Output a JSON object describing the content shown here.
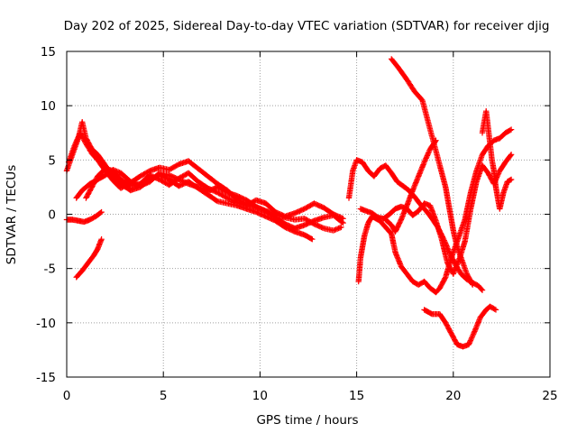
{
  "chart_data": {
    "type": "scatter",
    "title": "Day 202 of 2025, Sidereal Day-to-day VTEC variation (SDTVAR) for receiver djig",
    "xlabel": "GPS time / hours",
    "ylabel": "SDTVAR / TECUs",
    "xlim": [
      0,
      25
    ],
    "ylim": [
      -15,
      15
    ],
    "xticks": [
      0,
      5,
      10,
      15,
      20,
      25
    ],
    "yticks": [
      -15,
      -10,
      -5,
      0,
      5,
      10,
      15
    ],
    "grid": true,
    "marker": "+",
    "color": "#ff0000",
    "series": [
      {
        "points": [
          [
            0,
            4.0
          ],
          [
            0.3,
            5.5
          ],
          [
            0.6,
            7.0
          ],
          [
            0.8,
            8.5
          ],
          [
            1.0,
            7.0
          ],
          [
            1.3,
            6.0
          ],
          [
            1.6,
            5.5
          ],
          [
            2.0,
            4.5
          ],
          [
            2.4,
            3.5
          ],
          [
            2.8,
            2.8
          ],
          [
            3.3,
            2.2
          ],
          [
            3.8,
            2.5
          ],
          [
            4.3,
            3.2
          ],
          [
            4.8,
            3.6
          ],
          [
            5.3,
            3.2
          ],
          [
            5.8,
            2.6
          ],
          [
            6.3,
            3.0
          ],
          [
            6.8,
            2.4
          ],
          [
            7.3,
            1.8
          ],
          [
            7.8,
            1.2
          ],
          [
            8.3,
            1.0
          ],
          [
            8.8,
            0.8
          ],
          [
            9.3,
            0.5
          ],
          [
            9.8,
            0.2
          ],
          [
            10.3,
            -0.2
          ],
          [
            10.8,
            -0.6
          ],
          [
            11.3,
            -1.2
          ],
          [
            11.8,
            -1.6
          ],
          [
            12.3,
            -1.9
          ],
          [
            12.7,
            -2.3
          ]
        ]
      },
      {
        "points": [
          [
            0.1,
            4.8
          ],
          [
            0.4,
            6.3
          ],
          [
            0.7,
            7.5
          ],
          [
            1.0,
            6.5
          ],
          [
            1.3,
            5.6
          ],
          [
            1.6,
            5.0
          ],
          [
            2.0,
            4.0
          ],
          [
            2.4,
            3.1
          ],
          [
            2.8,
            2.4
          ],
          [
            3.3,
            2.9
          ],
          [
            3.8,
            3.5
          ],
          [
            4.3,
            4.0
          ],
          [
            4.8,
            4.3
          ],
          [
            5.3,
            4.1
          ],
          [
            5.8,
            4.6
          ],
          [
            6.3,
            4.9
          ],
          [
            6.8,
            4.2
          ],
          [
            7.3,
            3.5
          ],
          [
            7.8,
            2.8
          ],
          [
            8.3,
            2.2
          ],
          [
            8.8,
            1.4
          ],
          [
            9.3,
            0.9
          ],
          [
            9.8,
            0.6
          ],
          [
            10.3,
            0.3
          ],
          [
            10.8,
            0.0
          ],
          [
            11.3,
            -0.3
          ],
          [
            11.8,
            -0.5
          ],
          [
            12.3,
            -0.4
          ],
          [
            12.8,
            -0.9
          ],
          [
            13.3,
            -1.3
          ],
          [
            13.8,
            -1.5
          ],
          [
            14.2,
            -1.2
          ]
        ]
      },
      {
        "points": [
          [
            1.0,
            1.5
          ],
          [
            1.3,
            2.5
          ],
          [
            1.6,
            3.5
          ],
          [
            2.0,
            4.2
          ],
          [
            2.4,
            4.0
          ],
          [
            2.8,
            3.2
          ],
          [
            3.3,
            2.6
          ],
          [
            3.8,
            2.8
          ],
          [
            4.3,
            3.6
          ],
          [
            4.8,
            3.2
          ],
          [
            5.3,
            2.7
          ],
          [
            5.8,
            3.3
          ],
          [
            6.3,
            3.8
          ],
          [
            6.8,
            3.0
          ],
          [
            7.3,
            2.4
          ],
          [
            7.8,
            2.0
          ],
          [
            8.3,
            1.5
          ],
          [
            8.8,
            1.1
          ],
          [
            9.3,
            0.8
          ],
          [
            9.8,
            1.3
          ],
          [
            10.3,
            1.0
          ],
          [
            10.8,
            0.2
          ],
          [
            11.3,
            -0.2
          ],
          [
            11.8,
            0.1
          ],
          [
            12.3,
            0.5
          ],
          [
            12.8,
            1.0
          ],
          [
            13.3,
            0.6
          ],
          [
            13.8,
            0.0
          ],
          [
            14.3,
            -0.4
          ]
        ]
      },
      {
        "points": [
          [
            0.5,
            1.5
          ],
          [
            0.8,
            2.2
          ],
          [
            1.2,
            2.8
          ],
          [
            1.6,
            3.2
          ],
          [
            2.0,
            3.6
          ],
          [
            2.4,
            4.1
          ],
          [
            2.8,
            3.8
          ],
          [
            3.3,
            3.0
          ],
          [
            3.8,
            2.6
          ],
          [
            4.3,
            3.0
          ],
          [
            4.8,
            3.8
          ],
          [
            5.3,
            3.6
          ],
          [
            5.8,
            3.2
          ],
          [
            6.3,
            2.8
          ],
          [
            6.8,
            2.5
          ],
          [
            7.3,
            2.1
          ],
          [
            7.8,
            2.5
          ],
          [
            8.3,
            2.0
          ],
          [
            8.8,
            1.7
          ],
          [
            9.3,
            1.3
          ],
          [
            9.8,
            0.7
          ],
          [
            10.3,
            0.3
          ],
          [
            10.8,
            -0.3
          ],
          [
            11.3,
            -0.9
          ],
          [
            11.8,
            -1.3
          ],
          [
            12.3,
            -1.0
          ],
          [
            12.8,
            -0.6
          ],
          [
            13.3,
            -0.3
          ],
          [
            13.8,
            -0.1
          ],
          [
            14.3,
            -0.8
          ]
        ]
      },
      {
        "points": [
          [
            0,
            -0.5
          ],
          [
            0.3,
            -0.5
          ],
          [
            0.6,
            -0.6
          ],
          [
            0.9,
            -0.7
          ],
          [
            1.2,
            -0.5
          ],
          [
            1.5,
            -0.2
          ],
          [
            1.8,
            0.2
          ]
        ]
      },
      {
        "points": [
          [
            0.5,
            -5.8
          ],
          [
            0.8,
            -5.2
          ],
          [
            1.1,
            -4.5
          ],
          [
            1.4,
            -3.8
          ],
          [
            1.6,
            -3.2
          ],
          [
            1.8,
            -2.3
          ]
        ]
      },
      {
        "points": [
          [
            14.6,
            1.5
          ],
          [
            14.8,
            4.0
          ],
          [
            15.0,
            5.0
          ],
          [
            15.3,
            4.8
          ],
          [
            15.6,
            4.0
          ],
          [
            15.9,
            3.5
          ],
          [
            16.2,
            4.2
          ],
          [
            16.5,
            4.5
          ],
          [
            16.8,
            3.8
          ],
          [
            17.1,
            3.0
          ],
          [
            17.4,
            2.6
          ],
          [
            17.7,
            2.2
          ],
          [
            18.0,
            1.6
          ],
          [
            18.3,
            0.9
          ],
          [
            18.6,
            0.3
          ],
          [
            18.9,
            -0.4
          ],
          [
            19.2,
            -1.2
          ],
          [
            19.5,
            -2.3
          ],
          [
            19.8,
            -3.5
          ],
          [
            20.1,
            -4.6
          ],
          [
            20.4,
            -5.5
          ],
          [
            20.7,
            -6.0
          ],
          [
            21.0,
            -6.3
          ],
          [
            21.3,
            -6.6
          ],
          [
            21.5,
            -7.0
          ]
        ]
      },
      {
        "points": [
          [
            15.1,
            -6.2
          ],
          [
            15.2,
            -4.0
          ],
          [
            15.4,
            -2.0
          ],
          [
            15.6,
            -0.8
          ],
          [
            15.8,
            -0.2
          ],
          [
            16.0,
            -0.4
          ],
          [
            16.2,
            -0.6
          ],
          [
            16.5,
            -1.2
          ],
          [
            16.8,
            -1.8
          ],
          [
            17.0,
            -3.5
          ],
          [
            17.3,
            -4.8
          ],
          [
            17.6,
            -5.5
          ],
          [
            17.9,
            -6.2
          ],
          [
            18.2,
            -6.5
          ],
          [
            18.5,
            -6.2
          ],
          [
            18.8,
            -6.8
          ],
          [
            19.1,
            -7.2
          ],
          [
            19.3,
            -6.8
          ],
          [
            19.6,
            -5.8
          ],
          [
            19.9,
            -4.0
          ],
          [
            20.2,
            -2.5
          ],
          [
            20.6,
            -0.5
          ],
          [
            20.9,
            2.0
          ],
          [
            21.2,
            4.0
          ],
          [
            21.5,
            5.5
          ],
          [
            21.8,
            6.3
          ],
          [
            22.1,
            6.8
          ],
          [
            22.4,
            7.0
          ],
          [
            22.7,
            7.5
          ],
          [
            23.0,
            7.8
          ]
        ]
      },
      {
        "points": [
          [
            15.2,
            0.5
          ],
          [
            15.5,
            0.3
          ],
          [
            15.8,
            0.1
          ],
          [
            16.1,
            -0.3
          ],
          [
            16.4,
            -0.4
          ],
          [
            16.7,
            0.0
          ],
          [
            17.0,
            0.5
          ],
          [
            17.3,
            0.7
          ],
          [
            17.6,
            0.5
          ],
          [
            17.9,
            -0.1
          ],
          [
            18.2,
            0.3
          ],
          [
            18.5,
            1.0
          ],
          [
            18.8,
            0.8
          ],
          [
            19.1,
            -0.6
          ],
          [
            19.4,
            -2.3
          ],
          [
            19.7,
            -4.5
          ],
          [
            20.0,
            -5.5
          ],
          [
            20.3,
            -4.2
          ],
          [
            20.6,
            -2.5
          ],
          [
            20.9,
            0.5
          ],
          [
            21.2,
            3.0
          ],
          [
            21.5,
            4.5
          ],
          [
            21.8,
            3.8
          ],
          [
            22.1,
            2.8
          ],
          [
            22.4,
            4.0
          ],
          [
            22.7,
            4.8
          ],
          [
            23.0,
            5.5
          ]
        ]
      },
      {
        "points": [
          [
            16.5,
            -0.5
          ],
          [
            16.8,
            -1.0
          ],
          [
            17.0,
            -1.6
          ],
          [
            17.3,
            -0.5
          ],
          [
            17.6,
            0.8
          ],
          [
            17.9,
            2.2
          ],
          [
            18.2,
            3.5
          ],
          [
            18.5,
            4.8
          ],
          [
            18.8,
            6.0
          ],
          [
            19.1,
            6.8
          ]
        ]
      },
      {
        "points": [
          [
            16.8,
            14.3
          ],
          [
            17.2,
            13.4
          ],
          [
            17.6,
            12.4
          ],
          [
            18.0,
            11.3
          ],
          [
            18.4,
            10.5
          ],
          [
            18.7,
            8.5
          ],
          [
            19.0,
            6.5
          ],
          [
            19.3,
            4.5
          ],
          [
            19.6,
            2.5
          ],
          [
            19.8,
            0.5
          ],
          [
            20.0,
            -1.5
          ],
          [
            20.2,
            -3.0
          ],
          [
            20.4,
            -4.0
          ],
          [
            20.7,
            -5.5
          ],
          [
            21.0,
            -6.5
          ]
        ]
      },
      {
        "points": [
          [
            18.5,
            -8.8
          ],
          [
            18.9,
            -9.2
          ],
          [
            19.3,
            -9.2
          ],
          [
            19.6,
            -10.0
          ],
          [
            19.9,
            -11.0
          ],
          [
            20.2,
            -12.0
          ],
          [
            20.5,
            -12.2
          ],
          [
            20.8,
            -12.0
          ],
          [
            21.1,
            -10.8
          ],
          [
            21.4,
            -9.5
          ],
          [
            21.7,
            -8.8
          ],
          [
            21.9,
            -8.5
          ],
          [
            22.2,
            -8.8
          ]
        ]
      },
      {
        "points": [
          [
            21.5,
            7.5
          ],
          [
            21.6,
            8.5
          ],
          [
            21.7,
            9.5
          ],
          [
            21.8,
            8.0
          ],
          [
            21.9,
            6.5
          ],
          [
            22.0,
            5.0
          ],
          [
            22.1,
            4.0
          ],
          [
            22.2,
            2.5
          ],
          [
            22.3,
            1.5
          ],
          [
            22.4,
            0.5
          ],
          [
            22.6,
            2.0
          ],
          [
            22.8,
            3.0
          ],
          [
            23.0,
            3.2
          ]
        ]
      }
    ]
  }
}
